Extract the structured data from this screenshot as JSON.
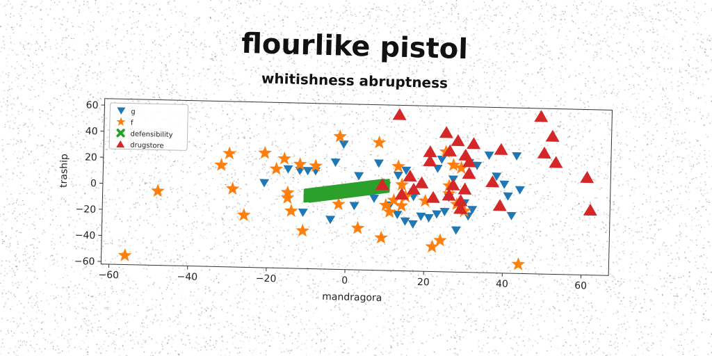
{
  "chart_data": {
    "type": "scatter",
    "title": "flourlike pistol",
    "subtitle": "whitishness abruptness",
    "xlabel": "mandragora",
    "ylabel": "traship",
    "xlim": [
      -62,
      67
    ],
    "ylim": [
      -62,
      65
    ],
    "xticks": [
      -60,
      -40,
      -20,
      0,
      20,
      40,
      60
    ],
    "yticks": [
      -60,
      -40,
      -20,
      0,
      20,
      40,
      60
    ],
    "grid": false,
    "legend_position": "top-left",
    "series": [
      {
        "name": "g",
        "marker": "triangle-down",
        "color": "#1f77b4",
        "points": [
          [
            -1,
            34
          ],
          [
            -3,
            20
          ],
          [
            -12,
            13
          ],
          [
            -10,
            13
          ],
          [
            -8,
            13
          ],
          [
            -15,
            14
          ],
          [
            -21,
            3
          ],
          [
            -9,
            -8
          ],
          [
            -11,
            -19
          ],
          [
            -4,
            -24
          ],
          [
            2,
            -13
          ],
          [
            3,
            10
          ],
          [
            8,
            20
          ],
          [
            13,
            11
          ],
          [
            15,
            15
          ],
          [
            10,
            3
          ],
          [
            7,
            -7
          ],
          [
            11,
            -12
          ],
          [
            13,
            -19
          ],
          [
            15,
            -24
          ],
          [
            17,
            -26
          ],
          [
            19,
            -20
          ],
          [
            21,
            -21
          ],
          [
            23,
            -18
          ],
          [
            25,
            -16
          ],
          [
            17,
            -5
          ],
          [
            28,
            -30
          ],
          [
            29,
            -13
          ],
          [
            30,
            -9
          ],
          [
            31,
            -19
          ],
          [
            32,
            -14
          ],
          [
            31,
            22
          ],
          [
            33,
            20
          ],
          [
            36,
            28
          ],
          [
            38,
            12
          ],
          [
            40,
            6
          ],
          [
            41,
            -3
          ],
          [
            42,
            -18
          ],
          [
            43,
            28
          ],
          [
            44,
            2
          ],
          [
            23,
            17
          ],
          [
            24,
            24
          ],
          [
            26,
            -5
          ],
          [
            27,
            9
          ]
        ]
      },
      {
        "name": "f",
        "marker": "star",
        "color": "#ff7f0e",
        "points": [
          [
            -56,
            -55
          ],
          [
            -48,
            -5
          ],
          [
            -32,
            16
          ],
          [
            -30,
            25
          ],
          [
            -29,
            -2
          ],
          [
            -26,
            -22
          ],
          [
            -21,
            26
          ],
          [
            -18,
            14
          ],
          [
            -16,
            22
          ],
          [
            -15,
            -4
          ],
          [
            -15,
            -8
          ],
          [
            -14,
            -18
          ],
          [
            -12,
            18
          ],
          [
            -11,
            -33
          ],
          [
            -8,
            17
          ],
          [
            -2,
            40
          ],
          [
            -2,
            -12
          ],
          [
            3,
            -30
          ],
          [
            8,
            36
          ],
          [
            9,
            -37
          ],
          [
            10,
            -12
          ],
          [
            11,
            -17
          ],
          [
            12,
            -8
          ],
          [
            13,
            18
          ],
          [
            14,
            4
          ],
          [
            15,
            -5
          ],
          [
            22,
            -43
          ],
          [
            24,
            -38
          ],
          [
            25,
            30
          ],
          [
            26,
            4
          ],
          [
            27,
            20
          ],
          [
            28,
            -10
          ],
          [
            29,
            18
          ],
          [
            30,
            -15
          ],
          [
            44,
            -55
          ],
          [
            14,
            -12
          ],
          [
            26,
            -2
          ],
          [
            20,
            -8
          ]
        ]
      },
      {
        "name": "defensibility",
        "marker": "x",
        "color": "#2ca02c",
        "segment": [
          [
            -10,
            -6
          ],
          [
            10,
            3
          ]
        ]
      },
      {
        "name": "drugstore",
        "marker": "triangle-up",
        "color": "#d62728",
        "points": [
          [
            13,
            58
          ],
          [
            9,
            4
          ],
          [
            14,
            -3
          ],
          [
            16,
            11
          ],
          [
            17,
            1
          ],
          [
            19,
            6
          ],
          [
            21,
            30
          ],
          [
            21,
            23
          ],
          [
            22,
            -5
          ],
          [
            25,
            45
          ],
          [
            26,
            -3
          ],
          [
            26,
            31
          ],
          [
            27,
            5
          ],
          [
            28,
            39
          ],
          [
            29,
            -13
          ],
          [
            30,
            28
          ],
          [
            30,
            2
          ],
          [
            31,
            23
          ],
          [
            31,
            14
          ],
          [
            32,
            37
          ],
          [
            37,
            8
          ],
          [
            39,
            33
          ],
          [
            39,
            -10
          ],
          [
            49,
            59
          ],
          [
            50,
            31
          ],
          [
            52,
            44
          ],
          [
            53,
            24
          ],
          [
            61,
            13
          ],
          [
            62,
            -12
          ],
          [
            29,
            -7
          ]
        ]
      }
    ]
  }
}
